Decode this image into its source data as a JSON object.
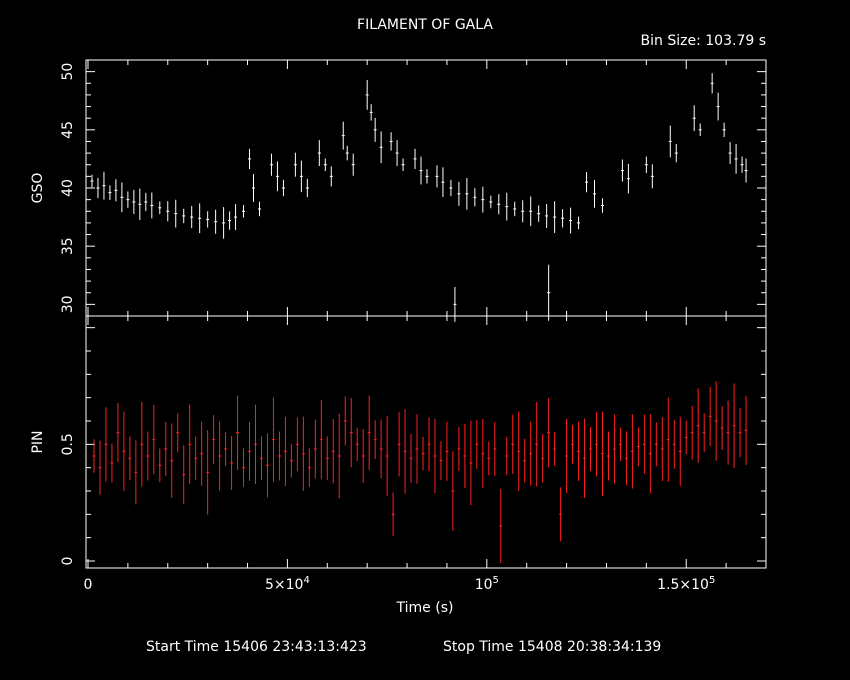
{
  "title": "FILAMENT OF GALA",
  "bin_size": "Bin Size: 103.79 s",
  "start_time": "Start Time 15406 23:43:13:423",
  "stop_time": "Stop Time 15408 20:38:34:139",
  "colors": {
    "background": "#000000",
    "axes": "#ffffff",
    "gso": "#ffffff",
    "pin": "#ff2020"
  },
  "chart_data": [
    {
      "type": "scatter",
      "panel": "top",
      "ylabel": "GSO",
      "ylim": [
        29,
        51
      ],
      "xlim": [
        -500,
        170000
      ],
      "y_ticks": [
        30,
        35,
        40,
        45,
        50
      ],
      "y_tick_labels": [
        "30",
        "35",
        "40",
        "45",
        "50"
      ],
      "error_bars": true,
      "series": [
        {
          "values": [
            [
              1000,
              40.6
            ],
            [
              2500,
              40.0
            ],
            [
              4000,
              40.2
            ],
            [
              5500,
              39.6
            ],
            [
              7000,
              39.8
            ],
            [
              8500,
              39.2
            ],
            [
              10000,
              39.0
            ],
            [
              11500,
              38.8
            ],
            [
              13000,
              38.6
            ],
            [
              14500,
              38.8
            ],
            [
              16000,
              38.5
            ],
            [
              18000,
              38.3
            ],
            [
              20000,
              38.0
            ],
            [
              22000,
              37.8
            ],
            [
              24000,
              37.6
            ],
            [
              26000,
              37.5
            ],
            [
              28000,
              37.4
            ],
            [
              30000,
              37.3
            ],
            [
              32000,
              37.1
            ],
            [
              34000,
              37.0
            ],
            [
              35500,
              37.2
            ],
            [
              37000,
              37.5
            ],
            [
              39000,
              38.0
            ],
            [
              40500,
              42.5
            ],
            [
              41500,
              40.0
            ],
            [
              43000,
              38.2
            ],
            [
              46000,
              42.0
            ],
            [
              47500,
              41.0
            ],
            [
              49000,
              40.0
            ],
            [
              52000,
              42.0
            ],
            [
              53500,
              41.0
            ],
            [
              55000,
              40.0
            ],
            [
              58000,
              43.0
            ],
            [
              59500,
              42.0
            ],
            [
              61000,
              41.0
            ],
            [
              64000,
              44.5
            ],
            [
              65000,
              43.0
            ],
            [
              66500,
              42.0
            ],
            [
              70000,
              48.0
            ],
            [
              71000,
              46.5
            ],
            [
              72000,
              45.0
            ],
            [
              73500,
              43.5
            ],
            [
              76000,
              44.0
            ],
            [
              77500,
              43.0
            ],
            [
              79000,
              42.0
            ],
            [
              82000,
              42.5
            ],
            [
              83500,
              41.5
            ],
            [
              85000,
              41.0
            ],
            [
              87500,
              41.0
            ],
            [
              89000,
              40.5
            ],
            [
              91000,
              40.0
            ],
            [
              93000,
              39.5
            ],
            [
              95000,
              39.5
            ],
            [
              97000,
              39.2
            ],
            [
              99000,
              39.0
            ],
            [
              101000,
              38.8
            ],
            [
              103000,
              38.6
            ],
            [
              105000,
              38.4
            ],
            [
              107000,
              38.2
            ],
            [
              109000,
              38.0
            ],
            [
              111000,
              38.0
            ],
            [
              113000,
              37.8
            ],
            [
              115000,
              37.6
            ],
            [
              117000,
              37.5
            ],
            [
              119000,
              37.4
            ],
            [
              121000,
              37.2
            ],
            [
              123000,
              37.0
            ],
            [
              125000,
              40.5
            ],
            [
              127000,
              39.5
            ],
            [
              129000,
              38.5
            ],
            [
              134000,
              41.5
            ],
            [
              135500,
              40.8
            ],
            [
              140000,
              42.0
            ],
            [
              141500,
              41.0
            ],
            [
              146000,
              44.0
            ],
            [
              147500,
              43.0
            ],
            [
              152000,
              46.0
            ],
            [
              153500,
              45.0
            ],
            [
              156500,
              49.0
            ],
            [
              158000,
              47.0
            ],
            [
              159500,
              45.0
            ],
            [
              161000,
              43.0
            ],
            [
              162500,
              42.5
            ],
            [
              164000,
              42.0
            ],
            [
              165000,
              41.5
            ]
          ]
        },
        {
          "values": [
            [
              92000,
              30.0
            ],
            [
              115500,
              31.0
            ]
          ]
        }
      ]
    },
    {
      "type": "scatter",
      "panel": "bottom",
      "ylabel": "PIN",
      "xlabel": "Time (s)",
      "ylim": [
        -0.03,
        1.05
      ],
      "xlim": [
        -500,
        170000
      ],
      "y_ticks": [
        0,
        0.5
      ],
      "y_tick_labels": [
        "0",
        "0.5"
      ],
      "x_ticks": [
        0,
        50000,
        100000,
        150000
      ],
      "x_tick_labels": [
        {
          "base": "0",
          "exp": ""
        },
        {
          "base": "5×10",
          "exp": "4"
        },
        {
          "base": "10",
          "exp": "5"
        },
        {
          "base": "1.5×10",
          "exp": "5"
        }
      ],
      "error_bars": true,
      "series": [
        {
          "values": [
            [
              1500,
              0.45
            ],
            [
              3000,
              0.4
            ],
            [
              4500,
              0.5
            ],
            [
              6000,
              0.42
            ],
            [
              7500,
              0.55
            ],
            [
              9000,
              0.47
            ],
            [
              10500,
              0.44
            ],
            [
              12000,
              0.38
            ],
            [
              13500,
              0.5
            ],
            [
              15000,
              0.45
            ],
            [
              16500,
              0.52
            ],
            [
              18000,
              0.41
            ],
            [
              19500,
              0.48
            ],
            [
              21000,
              0.43
            ],
            [
              22500,
              0.55
            ],
            [
              24000,
              0.37
            ],
            [
              25500,
              0.5
            ],
            [
              27000,
              0.44
            ],
            [
              28500,
              0.46
            ],
            [
              30000,
              0.38
            ],
            [
              31500,
              0.52
            ],
            [
              33000,
              0.45
            ],
            [
              34500,
              0.48
            ],
            [
              36000,
              0.42
            ],
            [
              37500,
              0.55
            ],
            [
              39000,
              0.4
            ],
            [
              40500,
              0.47
            ],
            [
              42000,
              0.5
            ],
            [
              43500,
              0.44
            ],
            [
              45000,
              0.41
            ],
            [
              46500,
              0.52
            ],
            [
              48000,
              0.45
            ],
            [
              49500,
              0.47
            ],
            [
              51000,
              0.43
            ],
            [
              52500,
              0.5
            ],
            [
              54000,
              0.46
            ],
            [
              55500,
              0.4
            ],
            [
              57000,
              0.48
            ],
            [
              58500,
              0.52
            ],
            [
              60000,
              0.44
            ],
            [
              61500,
              0.47
            ],
            [
              63000,
              0.45
            ],
            [
              64500,
              0.6
            ],
            [
              66000,
              0.55
            ],
            [
              67500,
              0.5
            ],
            [
              69000,
              0.45
            ],
            [
              70500,
              0.55
            ],
            [
              72000,
              0.52
            ],
            [
              73500,
              0.48
            ],
            [
              75000,
              0.45
            ],
            [
              76500,
              0.2
            ],
            [
              78000,
              0.5
            ],
            [
              79500,
              0.47
            ],
            [
              81000,
              0.44
            ],
            [
              82500,
              0.48
            ],
            [
              84000,
              0.46
            ],
            [
              85500,
              0.5
            ],
            [
              87000,
              0.45
            ],
            [
              88500,
              0.43
            ],
            [
              90000,
              0.47
            ],
            [
              91500,
              0.3
            ],
            [
              93000,
              0.48
            ],
            [
              94500,
              0.45
            ],
            [
              96000,
              0.42
            ],
            [
              97500,
              0.5
            ],
            [
              99000,
              0.46
            ],
            [
              100500,
              0.44
            ],
            [
              102000,
              0.48
            ],
            [
              103500,
              0.15
            ],
            [
              105000,
              0.45
            ],
            [
              106500,
              0.5
            ],
            [
              108000,
              0.47
            ],
            [
              109500,
              0.43
            ],
            [
              111000,
              0.46
            ],
            [
              112500,
              0.5
            ],
            [
              114000,
              0.44
            ],
            [
              115500,
              0.55
            ],
            [
              117000,
              0.48
            ],
            [
              118500,
              0.2
            ],
            [
              120000,
              0.45
            ],
            [
              121500,
              0.5
            ],
            [
              123000,
              0.47
            ],
            [
              124500,
              0.44
            ],
            [
              126000,
              0.48
            ],
            [
              127500,
              0.5
            ],
            [
              129000,
              0.46
            ],
            [
              130500,
              0.45
            ],
            [
              132000,
              0.48
            ],
            [
              133500,
              0.5
            ],
            [
              135000,
              0.44
            ],
            [
              136500,
              0.47
            ],
            [
              138000,
              0.49
            ],
            [
              139500,
              0.5
            ],
            [
              141000,
              0.46
            ],
            [
              142500,
              0.5
            ],
            [
              144000,
              0.48
            ],
            [
              145500,
              0.52
            ],
            [
              147000,
              0.5
            ],
            [
              148500,
              0.47
            ],
            [
              150000,
              0.53
            ],
            [
              151500,
              0.55
            ],
            [
              153000,
              0.58
            ],
            [
              154500,
              0.55
            ],
            [
              156000,
              0.62
            ],
            [
              157500,
              0.6
            ],
            [
              159000,
              0.57
            ],
            [
              160500,
              0.55
            ],
            [
              162000,
              0.58
            ],
            [
              163500,
              0.55
            ],
            [
              165000,
              0.56
            ]
          ]
        }
      ]
    }
  ]
}
